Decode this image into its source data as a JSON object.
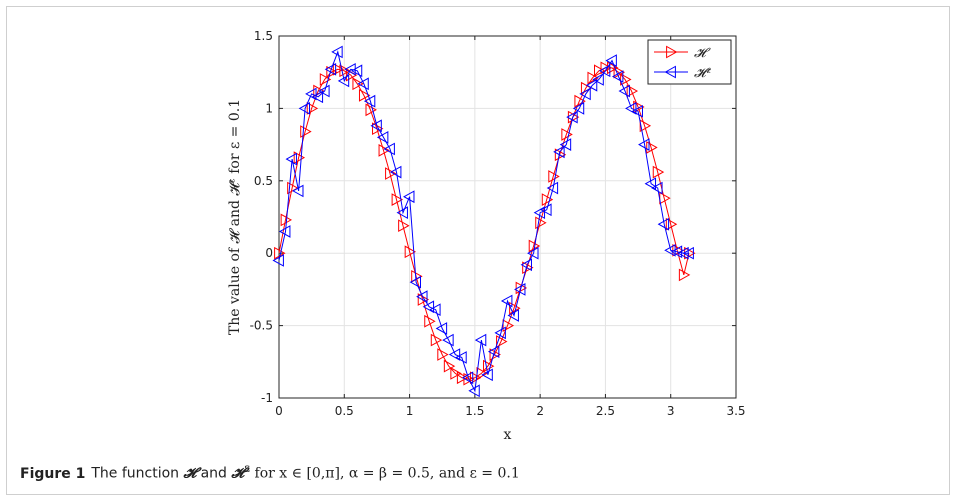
{
  "chart_data": {
    "type": "line",
    "xlabel": "x",
    "ylabel": "The value of 𝓗 and 𝓗ᵋ for ε = 0.1",
    "xlim": [
      0,
      3.5
    ],
    "ylim": [
      -1,
      1.5
    ],
    "xticks": [
      0,
      0.5,
      1,
      1.5,
      2,
      2.5,
      3,
      3.5
    ],
    "yticks": [
      -1,
      -0.5,
      0,
      0.5,
      1,
      1.5
    ],
    "xtick_labels": [
      "0",
      "0.5",
      "1",
      "1.5",
      "2",
      "2.5",
      "3",
      "3.5"
    ],
    "ytick_labels": [
      "-1",
      "-0.5",
      "0",
      "0.5",
      "1",
      "1.5"
    ],
    "grid": true,
    "legend_position": "top-right",
    "series": [
      {
        "name": "𝓗",
        "color": "#ff0000",
        "marker": "triangle-right",
        "x": [
          0.0,
          0.05,
          0.1,
          0.15,
          0.2,
          0.25,
          0.3,
          0.35,
          0.4,
          0.45,
          0.5,
          0.55,
          0.6,
          0.65,
          0.7,
          0.75,
          0.8,
          0.85,
          0.9,
          0.95,
          1.0,
          1.05,
          1.1,
          1.15,
          1.2,
          1.25,
          1.3,
          1.35,
          1.4,
          1.45,
          1.5,
          1.55,
          1.6,
          1.65,
          1.7,
          1.75,
          1.8,
          1.85,
          1.9,
          1.95,
          2.0,
          2.05,
          2.1,
          2.15,
          2.2,
          2.25,
          2.3,
          2.35,
          2.4,
          2.45,
          2.5,
          2.55,
          2.6,
          2.65,
          2.7,
          2.75,
          2.8,
          2.85,
          2.9,
          2.95,
          3.0,
          3.05,
          3.1,
          3.14
        ],
        "y": [
          0.0,
          0.23,
          0.45,
          0.66,
          0.84,
          1.0,
          1.12,
          1.2,
          1.25,
          1.27,
          1.26,
          1.23,
          1.17,
          1.09,
          0.99,
          0.86,
          0.71,
          0.55,
          0.37,
          0.19,
          0.01,
          -0.16,
          -0.32,
          -0.47,
          -0.6,
          -0.7,
          -0.78,
          -0.83,
          -0.86,
          -0.87,
          -0.86,
          -0.83,
          -0.78,
          -0.7,
          -0.61,
          -0.5,
          -0.38,
          -0.24,
          -0.1,
          0.05,
          0.21,
          0.37,
          0.53,
          0.68,
          0.82,
          0.94,
          1.05,
          1.14,
          1.21,
          1.26,
          1.28,
          1.28,
          1.25,
          1.2,
          1.12,
          1.01,
          0.88,
          0.73,
          0.56,
          0.38,
          0.2,
          0.02,
          -0.15,
          0.0
        ]
      },
      {
        "name": "𝓗ᵋ",
        "color": "#0000ff",
        "marker": "triangle-left",
        "x": [
          0.0,
          0.05,
          0.1,
          0.15,
          0.2,
          0.25,
          0.3,
          0.35,
          0.4,
          0.45,
          0.5,
          0.55,
          0.6,
          0.65,
          0.7,
          0.75,
          0.8,
          0.85,
          0.9,
          0.95,
          1.0,
          1.05,
          1.1,
          1.15,
          1.2,
          1.25,
          1.3,
          1.35,
          1.4,
          1.45,
          1.5,
          1.55,
          1.6,
          1.65,
          1.7,
          1.75,
          1.8,
          1.85,
          1.9,
          1.95,
          2.0,
          2.05,
          2.1,
          2.15,
          2.2,
          2.25,
          2.3,
          2.35,
          2.4,
          2.45,
          2.5,
          2.55,
          2.6,
          2.65,
          2.7,
          2.75,
          2.8,
          2.85,
          2.9,
          2.95,
          3.0,
          3.05,
          3.1,
          3.14
        ],
        "y": [
          -0.05,
          0.15,
          0.65,
          0.43,
          1.0,
          1.1,
          1.08,
          1.12,
          1.27,
          1.39,
          1.19,
          1.27,
          1.26,
          1.17,
          1.05,
          0.88,
          0.8,
          0.72,
          0.56,
          0.28,
          0.39,
          -0.2,
          -0.3,
          -0.37,
          -0.39,
          -0.52,
          -0.6,
          -0.7,
          -0.72,
          -0.86,
          -0.95,
          -0.6,
          -0.84,
          -0.68,
          -0.55,
          -0.33,
          -0.43,
          -0.25,
          -0.08,
          0.0,
          0.28,
          0.3,
          0.45,
          0.7,
          0.75,
          0.94,
          1.0,
          1.1,
          1.16,
          1.2,
          1.26,
          1.33,
          1.22,
          1.12,
          1.0,
          0.98,
          0.75,
          0.48,
          0.45,
          0.2,
          0.02,
          0.01,
          0.0,
          0.0
        ]
      }
    ]
  },
  "caption": {
    "label": "Figure 1",
    "text_1": "The function ",
    "h1": "𝓗",
    "text_2": " and ",
    "h2": "𝓗",
    "sup": "ε",
    "text_3": " for x ∈ [0,π], α = β = 0.5, and ε = 0.1"
  }
}
